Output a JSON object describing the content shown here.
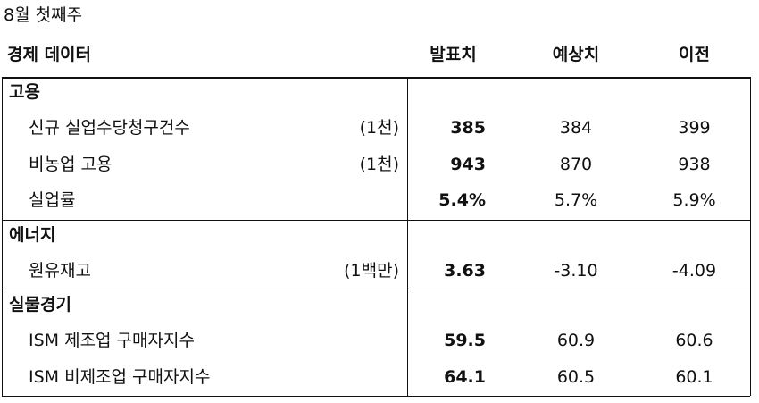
{
  "title": "8월 첫째주",
  "header": [
    "경제 데이터",
    "발표치",
    "예상치",
    "이전"
  ],
  "sections": [
    {
      "name": "고용",
      "rows": [
        {
          "label": "신규 실업수당청구건수",
          "unit": "(1천)",
          "actual": "385",
          "forecast": "384",
          "previous": "399"
        },
        {
          "label": "비농업 고용",
          "unit": "(1천)",
          "actual": "943",
          "forecast": "870",
          "previous": "938"
        },
        {
          "label": "실업률",
          "actual": "5.4%",
          "forecast": "5.7%",
          "previous": "5.9%"
        }
      ]
    },
    {
      "name": "에너지",
      "rows": [
        {
          "label": "원유재고",
          "unit": "(1백만)",
          "actual": "3.63",
          "forecast": "-3.10",
          "previous": "-4.09"
        }
      ]
    },
    {
      "name": "실물경기",
      "rows": [
        {
          "label": "ISM 제조업 구매자지수",
          "actual": "59.5",
          "forecast": "60.9",
          "previous": "60.6"
        },
        {
          "label": "ISM 비제조업 구매자지수",
          "actual": "64.1",
          "forecast": "60.5",
          "previous": "60.1"
        }
      ]
    }
  ]
}
